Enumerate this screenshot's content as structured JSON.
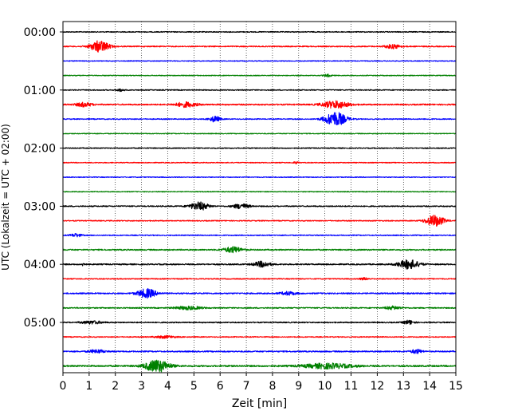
{
  "chart_data": {
    "type": "line",
    "title": "",
    "xlabel": "Zeit  [min]",
    "ylabel": "UTC (Lokalzeit = UTC + 02:00)",
    "xlim": [
      0,
      15
    ],
    "x_ticks": [
      0,
      1,
      2,
      3,
      4,
      5,
      6,
      7,
      8,
      9,
      10,
      11,
      12,
      13,
      14,
      15
    ],
    "x_tick_labels": [
      "0",
      "1",
      "2",
      "3",
      "4",
      "5",
      "6",
      "7",
      "8",
      "9",
      "10",
      "11",
      "12",
      "13",
      "14",
      "15"
    ],
    "y_tick_labels": [
      "00:00",
      "01:00",
      "02:00",
      "03:00",
      "04:00",
      "05:00"
    ],
    "y_tick_rows": [
      0,
      4,
      8,
      12,
      16,
      20
    ],
    "grid": "vertical dotted",
    "row_minutes": 15,
    "row_colors": [
      "#000000",
      "#ff0000",
      "#0000ff",
      "#008000"
    ],
    "traces": [
      {
        "row": 0,
        "noise": 0.6,
        "events": []
      },
      {
        "row": 1,
        "noise": 0.7,
        "events": [
          {
            "t": 1.4,
            "amp": 7,
            "dur": 0.35
          },
          {
            "t": 12.6,
            "amp": 2.5,
            "dur": 0.3
          }
        ]
      },
      {
        "row": 2,
        "noise": 0.5,
        "events": []
      },
      {
        "row": 3,
        "noise": 0.5,
        "events": [
          {
            "t": 10.1,
            "amp": 1.5,
            "dur": 0.15
          }
        ]
      },
      {
        "row": 4,
        "noise": 0.6,
        "events": [
          {
            "t": 2.2,
            "amp": 1.5,
            "dur": 0.15
          }
        ]
      },
      {
        "row": 5,
        "noise": 0.8,
        "events": [
          {
            "t": 0.8,
            "amp": 2.5,
            "dur": 0.3
          },
          {
            "t": 4.7,
            "amp": 3,
            "dur": 0.4
          },
          {
            "t": 10.4,
            "amp": 4.5,
            "dur": 0.5
          }
        ]
      },
      {
        "row": 6,
        "noise": 0.6,
        "events": [
          {
            "t": 5.8,
            "amp": 3.5,
            "dur": 0.2
          },
          {
            "t": 10.4,
            "amp": 9,
            "dur": 0.4
          }
        ]
      },
      {
        "row": 7,
        "noise": 0.5,
        "events": []
      },
      {
        "row": 8,
        "noise": 0.6,
        "events": []
      },
      {
        "row": 9,
        "noise": 0.5,
        "events": [
          {
            "t": 8.9,
            "amp": 1.2,
            "dur": 0.1
          }
        ]
      },
      {
        "row": 10,
        "noise": 0.5,
        "events": []
      },
      {
        "row": 11,
        "noise": 0.5,
        "events": []
      },
      {
        "row": 12,
        "noise": 0.7,
        "events": [
          {
            "t": 5.2,
            "amp": 5,
            "dur": 0.35
          },
          {
            "t": 6.8,
            "amp": 3,
            "dur": 0.3
          }
        ]
      },
      {
        "row": 13,
        "noise": 0.6,
        "events": [
          {
            "t": 14.2,
            "amp": 7,
            "dur": 0.35
          }
        ]
      },
      {
        "row": 14,
        "noise": 0.6,
        "events": [
          {
            "t": 0.5,
            "amp": 2,
            "dur": 0.2
          }
        ]
      },
      {
        "row": 15,
        "noise": 0.8,
        "events": [
          {
            "t": 6.5,
            "amp": 3.5,
            "dur": 0.35
          }
        ]
      },
      {
        "row": 16,
        "noise": 0.8,
        "events": [
          {
            "t": 0.8,
            "amp": 3.5,
            "dur": 0.05
          },
          {
            "t": 7.6,
            "amp": 3.5,
            "dur": 0.3
          },
          {
            "t": 13.2,
            "amp": 5.5,
            "dur": 0.4
          }
        ]
      },
      {
        "row": 17,
        "noise": 0.6,
        "events": [
          {
            "t": 11.5,
            "amp": 1.2,
            "dur": 0.2
          }
        ]
      },
      {
        "row": 18,
        "noise": 0.8,
        "events": [
          {
            "t": 3.2,
            "amp": 5.5,
            "dur": 0.35
          },
          {
            "t": 8.6,
            "amp": 2,
            "dur": 0.3
          }
        ]
      },
      {
        "row": 19,
        "noise": 0.7,
        "events": [
          {
            "t": 4.8,
            "amp": 2,
            "dur": 0.5
          },
          {
            "t": 12.6,
            "amp": 2,
            "dur": 0.3
          }
        ]
      },
      {
        "row": 20,
        "noise": 0.7,
        "events": [
          {
            "t": 1.1,
            "amp": 1.8,
            "dur": 0.4
          },
          {
            "t": 13.2,
            "amp": 2.5,
            "dur": 0.2
          }
        ]
      },
      {
        "row": 21,
        "noise": 0.6,
        "events": [
          {
            "t": 3.9,
            "amp": 1.5,
            "dur": 0.4
          }
        ]
      },
      {
        "row": 22,
        "noise": 0.8,
        "events": [
          {
            "t": 1.3,
            "amp": 2,
            "dur": 0.3
          },
          {
            "t": 13.5,
            "amp": 2.5,
            "dur": 0.2
          }
        ]
      },
      {
        "row": 23,
        "noise": 1.0,
        "events": [
          {
            "t": 3.6,
            "amp": 7.5,
            "dur": 0.45
          },
          {
            "t": 10.1,
            "amp": 3,
            "dur": 0.9
          }
        ]
      }
    ]
  }
}
